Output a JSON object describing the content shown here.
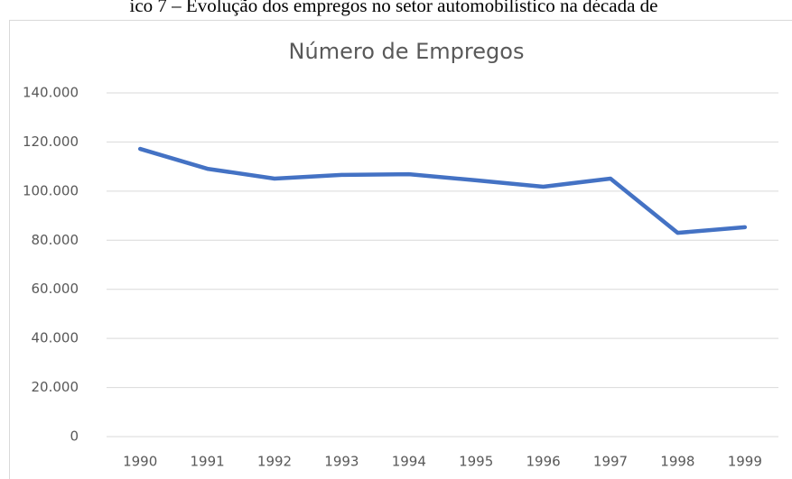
{
  "caption": "ico 7 – Evolução dos empregos no setor automobilístico na década de",
  "chart_data": {
    "type": "line",
    "title": "Número de Empregos",
    "categories": [
      "1990",
      "1991",
      "1992",
      "1993",
      "1994",
      "1995",
      "1996",
      "1997",
      "1998",
      "1999"
    ],
    "series": [
      {
        "name": "Número de Empregos",
        "color": "#4472c4",
        "values": [
          117200,
          109100,
          105100,
          106600,
          106900,
          104400,
          101800,
          105100,
          83000,
          85300
        ]
      }
    ],
    "ylim": [
      0,
      140000
    ],
    "yticks": [
      0,
      {
        "value": 20000,
        "label": "20.000"
      },
      {
        "value": 40000,
        "label": "40.000"
      },
      {
        "value": 60000,
        "label": "60.000"
      },
      {
        "value": 80000,
        "label": "80.000"
      },
      {
        "value": 100000,
        "label": "100.000"
      },
      {
        "value": 120000,
        "label": "120.000"
      },
      {
        "value": 140000,
        "label": "140.000"
      }
    ],
    "grid": true
  }
}
